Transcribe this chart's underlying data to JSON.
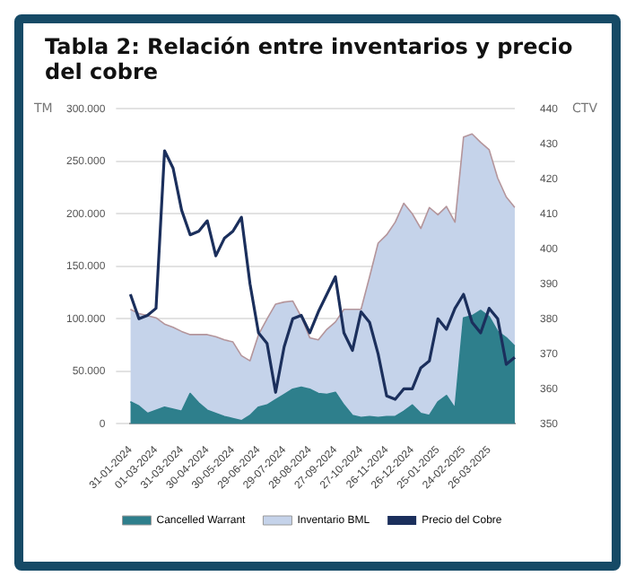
{
  "chart_data": {
    "type": "area",
    "title": "Tabla 2: Relación entre inventarios y precio del cobre",
    "ylabel": "TM",
    "y2label": "CTV",
    "categories": [
      "31-01-2024",
      null,
      null,
      "01-03-2024",
      null,
      null,
      "31-03-2024",
      null,
      null,
      "30-04-2024",
      null,
      null,
      "30-05-2024",
      null,
      null,
      "29-06-2024",
      null,
      null,
      "29-07-2024",
      null,
      null,
      "28-08-2024",
      null,
      null,
      "27-09-2024",
      null,
      null,
      "27-10-2024",
      null,
      null,
      "26-11-2024",
      null,
      null,
      "26-12-2024",
      null,
      null,
      "25-01-2025",
      null,
      null,
      "24-02-2025",
      null,
      null,
      "26-03-2025",
      null,
      null,
      null
    ],
    "series": [
      {
        "name": "Cancelled Warrant",
        "type": "area",
        "color": "#2e7f8c",
        "values": [
          21000,
          17000,
          10000,
          13000,
          16000,
          14000,
          12000,
          29000,
          20000,
          13000,
          10000,
          7000,
          5000,
          3000,
          8000,
          16000,
          18000,
          23000,
          28000,
          33000,
          35000,
          33000,
          29000,
          28000,
          30000,
          18000,
          8000,
          6000,
          7000,
          6000,
          7000,
          7000,
          12000,
          18000,
          10000,
          8000,
          21000,
          27000,
          15000,
          101000,
          103000,
          108000,
          102000,
          88000,
          82000,
          74000
        ]
      },
      {
        "name": "Inventario BML",
        "type": "area",
        "color": "#c5d3ea",
        "values": [
          109000,
          105000,
          103000,
          101000,
          95000,
          92000,
          88000,
          85000,
          85000,
          85000,
          83000,
          80000,
          78000,
          65000,
          60000,
          85000,
          100000,
          114000,
          116000,
          117000,
          102000,
          82000,
          80000,
          90000,
          97000,
          109000,
          109000,
          109000,
          140000,
          172000,
          180000,
          192000,
          210000,
          200000,
          186000,
          206000,
          199000,
          207000,
          192000,
          273000,
          276000,
          268000,
          261000,
          234000,
          216000,
          206000
        ]
      },
      {
        "name": "Precio del Cobre",
        "type": "line",
        "axis": "y2",
        "color": "#1b2f5c",
        "values": [
          387,
          380,
          381,
          383,
          428,
          423,
          411,
          404,
          405,
          408,
          398,
          403,
          405,
          409,
          390,
          376,
          373,
          359,
          372,
          380,
          381,
          376,
          382,
          387,
          392,
          376,
          371,
          382,
          379,
          370,
          358,
          357,
          360,
          360,
          366,
          368,
          380,
          377,
          383,
          387,
          379,
          376,
          383,
          380,
          367,
          369
        ]
      }
    ],
    "ylim": [
      0,
      300000
    ],
    "yticks": [
      {
        "value": 0,
        "label": "0"
      },
      {
        "value": 50000,
        "label": "50.000"
      },
      {
        "value": 100000,
        "label": "100.000"
      },
      {
        "value": 150000,
        "label": "150.000"
      },
      {
        "value": 200000,
        "label": "200.000"
      },
      {
        "value": 250000,
        "label": "250.000"
      },
      {
        "value": 300000,
        "label": "300.000"
      }
    ],
    "y2lim": [
      350,
      440
    ],
    "y2ticks": [
      350,
      360,
      370,
      380,
      390,
      400,
      410,
      420,
      430,
      440
    ],
    "grid": "y",
    "legend": "bottom",
    "marker": "none",
    "line_style": "solid"
  }
}
